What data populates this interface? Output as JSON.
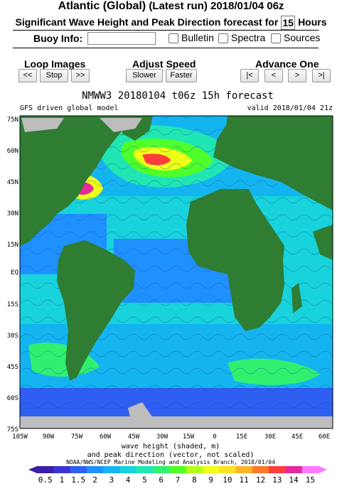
{
  "header": {
    "region": "Atlantic (Global)",
    "run": "(Latest run) 2018/01/04 06z",
    "subtitle_pre": "Significant Wave Height and Peak Direction forecast for",
    "hours": "15",
    "subtitle_post": "Hours"
  },
  "buoy": {
    "label": "Buoy Info:",
    "value": "",
    "options": [
      {
        "label": "Bulletin",
        "checked": false
      },
      {
        "label": "Spectra",
        "checked": false
      },
      {
        "label": "Sources",
        "checked": false
      }
    ]
  },
  "controls": {
    "loop_title": "Loop Images",
    "loop_buttons": [
      "<<",
      "Stop",
      ">>"
    ],
    "speed_title": "Adjust Speed",
    "speed_buttons": [
      "Slower",
      "Faster"
    ],
    "advance_title": "Advance One",
    "advance_buttons": [
      "|<",
      "<",
      ">",
      ">|"
    ]
  },
  "map": {
    "title": "NMWW3 20180104 t06z    15h forecast",
    "model": "GFS driven global model",
    "valid": "valid 2018/01/04 21z",
    "lat_labels": [
      "75N",
      "60N",
      "45N",
      "30N",
      "15N",
      "EQ",
      "15S",
      "30S",
      "45S",
      "60S",
      "75S"
    ],
    "lon_labels": [
      "105W",
      "90W",
      "75W",
      "60W",
      "45W",
      "30W",
      "15W",
      "0",
      "15E",
      "30E",
      "45E",
      "60E"
    ],
    "caption1": "wave height (shaded, m)",
    "caption2": "and peak direction (vector, not scaled)",
    "credit": "NOAA/NWS/NCEP Marine Modeling and Analysis Branch, 2018/01/04",
    "scale_labels": [
      "0.5",
      "1",
      "1.5",
      "2",
      "3",
      "4",
      "5",
      "6",
      "7",
      "8",
      "9",
      "10",
      "11",
      "12",
      "13",
      "14",
      "15"
    ],
    "colors": {
      "land": "#2e7d32",
      "ice": "#bdbdbd",
      "scale": [
        "#3c1ea8",
        "#3c32d8",
        "#2e5ef2",
        "#1e90ff",
        "#14b4f0",
        "#18d2dc",
        "#20e6b4",
        "#30f070",
        "#50ff2a",
        "#b0ff14",
        "#f0ff18",
        "#ffe020",
        "#ffb428",
        "#ff7828",
        "#ff3c3c",
        "#e6289c",
        "#ff78ff"
      ]
    }
  }
}
